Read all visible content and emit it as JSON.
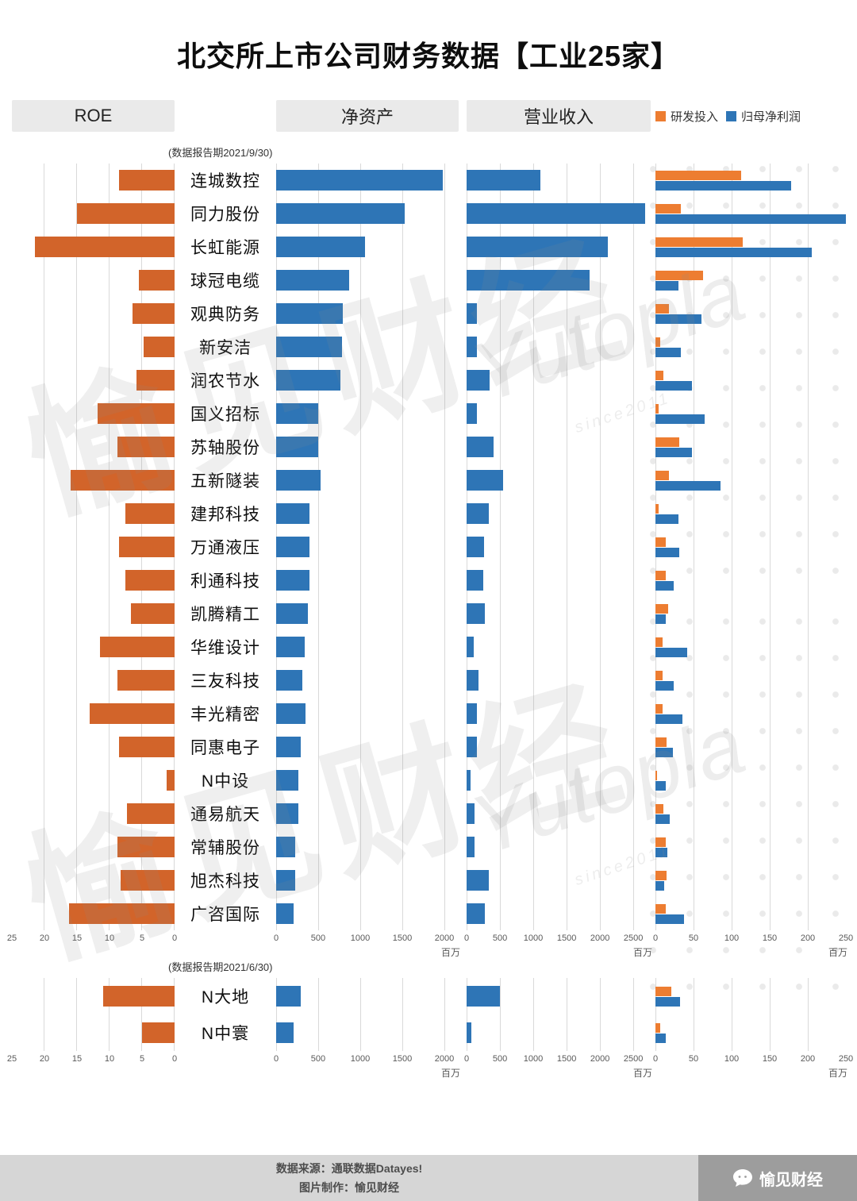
{
  "page": {
    "title": "北交所上市公司财务数据【工业25家】",
    "footer": {
      "source_line": "数据来源：通联数据Datayes!",
      "credit_line": "图片制作：愉见财经",
      "logo_text": "愉见财经"
    },
    "watermarks": {
      "cn": "愉见财经",
      "en": "Yutopla",
      "en_sub": "since2011"
    }
  },
  "header": {
    "col_roe": "ROE",
    "col_net": "净资产",
    "col_rev": "营业收入",
    "legend": [
      {
        "label": "研发投入",
        "color": "#ED7D31"
      },
      {
        "label": "归母净利润",
        "color": "#2E75B6"
      }
    ]
  },
  "colors": {
    "bar_orange": "#D2642A",
    "bar_blue": "#2E75B6",
    "legend_orange": "#ED7D31",
    "legend_blue": "#2E75B6",
    "header_band": "#eaeaea",
    "gridline": "#d9d9d9",
    "footer_band": "#d6d6d6",
    "footer_logo_band": "#9d9d9d"
  },
  "chart_data": {
    "type": "bar",
    "title": "北交所上市公司财务数据【工业25家】",
    "unit_label": "百万",
    "legend": [
      "研发投入",
      "归母净利润"
    ],
    "axes": {
      "roe": {
        "label": "ROE",
        "ticks": [
          25,
          20,
          15,
          10,
          5,
          0
        ],
        "max": 25,
        "reversed": true
      },
      "net_assets": {
        "label": "净资产",
        "ticks": [
          0,
          500,
          1000,
          1500,
          2000
        ],
        "max": 2170,
        "unit": "百万"
      },
      "revenue": {
        "label": "营业收入",
        "ticks": [
          0,
          500,
          1000,
          1500,
          2000,
          2500
        ],
        "max": 2760,
        "unit": "百万"
      },
      "rd_profit": {
        "label": "研发投入/归母净利润",
        "ticks": [
          0,
          50,
          100,
          150,
          200,
          250
        ],
        "max": 250,
        "unit": "百万"
      }
    },
    "groups": [
      {
        "period_note": "(数据报告期2021/9/30)",
        "companies": [
          {
            "name": "连城数控",
            "roe": 8.5,
            "net_assets": 1980,
            "revenue": 1100,
            "rd": 112,
            "profit": 178
          },
          {
            "name": "同力股份",
            "roe": 15.0,
            "net_assets": 1530,
            "revenue": 2680,
            "rd": 33,
            "profit": 250
          },
          {
            "name": "长虹能源",
            "roe": 21.5,
            "net_assets": 1060,
            "revenue": 2120,
            "rd": 115,
            "profit": 205
          },
          {
            "name": "球冠电缆",
            "roe": 5.5,
            "net_assets": 870,
            "revenue": 1840,
            "rd": 62,
            "profit": 30
          },
          {
            "name": "观典防务",
            "roe": 6.5,
            "net_assets": 790,
            "revenue": 150,
            "rd": 18,
            "profit": 60
          },
          {
            "name": "新安洁",
            "roe": 4.8,
            "net_assets": 780,
            "revenue": 160,
            "rd": 6,
            "profit": 33
          },
          {
            "name": "润农节水",
            "roe": 5.9,
            "net_assets": 760,
            "revenue": 350,
            "rd": 10,
            "profit": 48
          },
          {
            "name": "国义招标",
            "roe": 11.8,
            "net_assets": 500,
            "revenue": 150,
            "rd": 4,
            "profit": 65
          },
          {
            "name": "苏轴股份",
            "roe": 8.8,
            "net_assets": 500,
            "revenue": 400,
            "rd": 31,
            "profit": 48
          },
          {
            "name": "五新隧装",
            "roe": 16.0,
            "net_assets": 530,
            "revenue": 550,
            "rd": 18,
            "profit": 85
          },
          {
            "name": "建邦科技",
            "roe": 7.6,
            "net_assets": 400,
            "revenue": 330,
            "rd": 4,
            "profit": 30
          },
          {
            "name": "万通液压",
            "roe": 8.5,
            "net_assets": 400,
            "revenue": 260,
            "rd": 13,
            "profit": 31
          },
          {
            "name": "利通科技",
            "roe": 7.6,
            "net_assets": 400,
            "revenue": 250,
            "rd": 13,
            "profit": 24
          },
          {
            "name": "凯腾精工",
            "roe": 6.7,
            "net_assets": 380,
            "revenue": 270,
            "rd": 17,
            "profit": 13
          },
          {
            "name": "华维设计",
            "roe": 11.5,
            "net_assets": 340,
            "revenue": 110,
            "rd": 9,
            "profit": 42
          },
          {
            "name": "三友科技",
            "roe": 8.8,
            "net_assets": 310,
            "revenue": 180,
            "rd": 9,
            "profit": 24
          },
          {
            "name": "丰光精密",
            "roe": 13.0,
            "net_assets": 350,
            "revenue": 150,
            "rd": 9,
            "profit": 35
          },
          {
            "name": "同惠电子",
            "roe": 8.5,
            "net_assets": 290,
            "revenue": 150,
            "rd": 15,
            "profit": 23
          },
          {
            "name": "N中设",
            "roe": 1.2,
            "net_assets": 260,
            "revenue": 60,
            "rd": 2,
            "profit": 13
          },
          {
            "name": "通易航天",
            "roe": 7.3,
            "net_assets": 260,
            "revenue": 120,
            "rd": 10,
            "profit": 19
          },
          {
            "name": "常辅股份",
            "roe": 8.8,
            "net_assets": 230,
            "revenue": 120,
            "rd": 13,
            "profit": 16
          },
          {
            "name": "旭杰科技",
            "roe": 8.3,
            "net_assets": 230,
            "revenue": 330,
            "rd": 15,
            "profit": 11
          },
          {
            "name": "广咨国际",
            "roe": 16.2,
            "net_assets": 210,
            "revenue": 270,
            "rd": 13,
            "profit": 37
          }
        ]
      },
      {
        "period_note": "(数据报告期2021/6/30)",
        "companies": [
          {
            "name": "N大地",
            "roe": 11.0,
            "net_assets": 290,
            "revenue": 500,
            "rd": 21,
            "profit": 32
          },
          {
            "name": "N中寰",
            "roe": 5.0,
            "net_assets": 210,
            "revenue": 70,
            "rd": 6,
            "profit": 14
          }
        ]
      }
    ]
  }
}
